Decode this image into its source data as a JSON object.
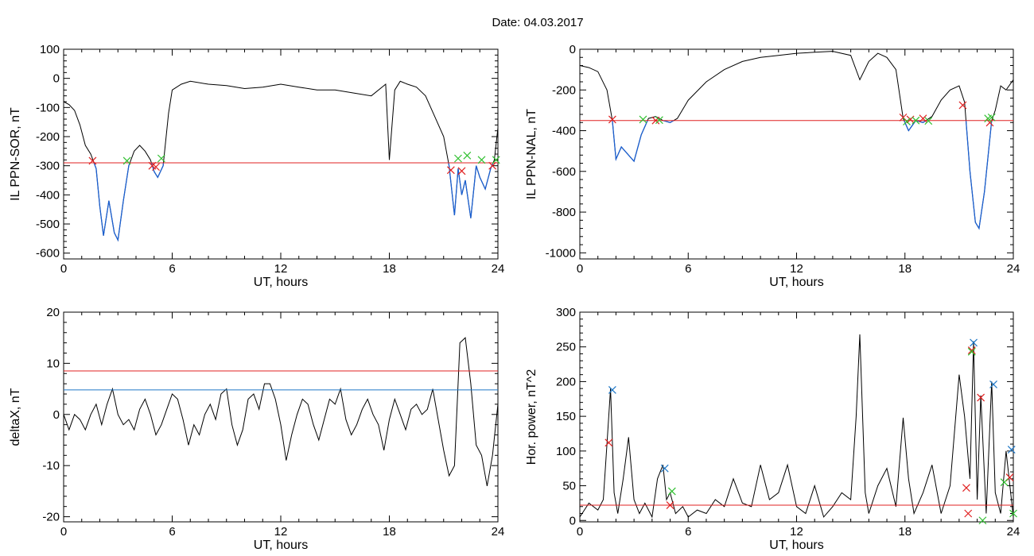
{
  "figure_title": "Date:  04.03.2017",
  "colors": {
    "line": "#000000",
    "threshold": "#e02020",
    "highlight": "#1a5fd0",
    "blue_line": "#1f78c8",
    "marker_red": "#e02020",
    "marker_green": "#30c030"
  },
  "chart_data": [
    {
      "id": "il-ppn-sor",
      "type": "line",
      "ylabel": "IL PPN-SOR, nT",
      "xlabel": "UT, hours",
      "xlim": [
        0,
        24
      ],
      "ylim": [
        -620,
        100
      ],
      "xticks": [
        0,
        6,
        12,
        18,
        24
      ],
      "yticks": [
        -600,
        -500,
        -400,
        -300,
        -200,
        -100,
        0,
        100
      ],
      "threshold": -290,
      "series": [
        {
          "x": [
            0,
            0.3,
            0.6,
            0.9,
            1.2,
            1.5,
            1.8,
            2.0,
            2.2,
            2.5,
            2.8,
            3.0,
            3.3,
            3.6,
            3.9,
            4.2,
            4.5,
            4.8,
            5.0,
            5.2,
            5.5,
            5.8,
            6.0,
            6.5,
            7,
            8,
            9,
            10,
            11,
            12,
            13,
            14,
            15,
            16,
            17,
            17.8,
            18.0,
            18.3,
            18.6,
            19,
            19.5,
            20,
            20.5,
            21,
            21.3,
            21.6,
            21.8,
            22.0,
            22.2,
            22.5,
            22.8,
            23,
            23.3,
            23.6,
            23.8,
            24
          ],
          "y": [
            -80,
            -90,
            -110,
            -160,
            -230,
            -260,
            -310,
            -440,
            -540,
            -420,
            -530,
            -555,
            -420,
            -300,
            -250,
            -230,
            -250,
            -280,
            -320,
            -340,
            -300,
            -120,
            -40,
            -20,
            -10,
            -20,
            -25,
            -35,
            -30,
            -20,
            -30,
            -40,
            -40,
            -50,
            -60,
            -20,
            -280,
            -40,
            -10,
            -20,
            -30,
            -60,
            -130,
            -200,
            -300,
            -470,
            -310,
            -400,
            -350,
            -480,
            -300,
            -340,
            -380,
            -310,
            -280,
            -170
          ]
        }
      ],
      "markers_red": [
        [
          1.6,
          -283
        ],
        [
          4.9,
          -300
        ],
        [
          5.1,
          -304
        ],
        [
          21.4,
          -315
        ],
        [
          22.0,
          -318
        ],
        [
          23.7,
          -300
        ]
      ],
      "markers_green": [
        [
          3.5,
          -283
        ],
        [
          5.4,
          -275
        ],
        [
          21.8,
          -275
        ],
        [
          22.3,
          -265
        ],
        [
          23.1,
          -280
        ],
        [
          23.9,
          -280
        ]
      ]
    },
    {
      "id": "il-ppn-nal",
      "type": "line",
      "ylabel": "IL PPN-NAL, nT",
      "xlabel": "UT, hours",
      "xlim": [
        0,
        24
      ],
      "ylim": [
        -1030,
        0
      ],
      "xticks": [
        0,
        6,
        12,
        18,
        24
      ],
      "yticks": [
        -1000,
        -800,
        -600,
        -400,
        -200,
        0
      ],
      "threshold": -350,
      "series": [
        {
          "x": [
            0,
            0.5,
            1.0,
            1.5,
            1.8,
            2.0,
            2.3,
            2.7,
            3.0,
            3.4,
            3.8,
            4.2,
            4.6,
            5.0,
            5.4,
            6,
            7,
            8,
            9,
            10,
            11,
            12,
            13,
            14,
            15,
            15.5,
            16,
            16.5,
            17,
            17.5,
            17.9,
            18.2,
            18.6,
            19.0,
            19.5,
            20,
            20.5,
            21,
            21.3,
            21.6,
            21.9,
            22.1,
            22.4,
            22.8,
            23.0,
            23.3,
            23.6,
            24
          ],
          "y": [
            -80,
            -90,
            -110,
            -200,
            -350,
            -540,
            -480,
            -520,
            -550,
            -420,
            -340,
            -330,
            -350,
            -360,
            -340,
            -250,
            -160,
            -100,
            -60,
            -40,
            -30,
            -20,
            -15,
            -10,
            -30,
            -150,
            -60,
            -20,
            -40,
            -100,
            -340,
            -400,
            -350,
            -360,
            -330,
            -250,
            -200,
            -180,
            -260,
            -600,
            -850,
            -880,
            -700,
            -350,
            -300,
            -180,
            -200,
            -150
          ]
        }
      ],
      "markers_red": [
        [
          1.8,
          -345
        ],
        [
          4.2,
          -350
        ],
        [
          17.9,
          -335
        ],
        [
          18.3,
          -345
        ],
        [
          19.0,
          -340
        ],
        [
          21.2,
          -275
        ],
        [
          22.7,
          -360
        ]
      ],
      "markers_green": [
        [
          3.5,
          -345
        ],
        [
          4.4,
          -348
        ],
        [
          18.1,
          -355
        ],
        [
          18.6,
          -350
        ],
        [
          19.3,
          -352
        ],
        [
          22.6,
          -340
        ],
        [
          22.8,
          -335
        ]
      ]
    },
    {
      "id": "delta-x",
      "type": "line",
      "ylabel": "deltaX, nT",
      "xlabel": "UT, hours",
      "xlim": [
        0,
        24
      ],
      "ylim": [
        -21,
        20
      ],
      "xticks": [
        0,
        6,
        12,
        18,
        24
      ],
      "yticks": [
        -20,
        -10,
        0,
        10,
        20
      ],
      "threshold_red": 8.5,
      "threshold_blue": 4.8,
      "series": [
        {
          "x": [
            0,
            0.3,
            0.6,
            0.9,
            1.2,
            1.5,
            1.8,
            2.1,
            2.4,
            2.7,
            3.0,
            3.3,
            3.6,
            3.9,
            4.2,
            4.5,
            4.8,
            5.1,
            5.4,
            5.7,
            6.0,
            6.3,
            6.6,
            6.9,
            7.2,
            7.5,
            7.8,
            8.1,
            8.4,
            8.7,
            9.0,
            9.3,
            9.6,
            9.9,
            10.2,
            10.5,
            10.8,
            11.1,
            11.4,
            11.7,
            12.0,
            12.3,
            12.6,
            12.9,
            13.2,
            13.5,
            13.8,
            14.1,
            14.4,
            14.7,
            15.0,
            15.3,
            15.6,
            15.9,
            16.2,
            16.5,
            16.8,
            17.1,
            17.4,
            17.7,
            18.0,
            18.3,
            18.6,
            18.9,
            19.2,
            19.5,
            19.8,
            20.1,
            20.4,
            20.7,
            21.0,
            21.3,
            21.6,
            21.9,
            22.2,
            22.5,
            22.8,
            23.1,
            23.4,
            23.7,
            24
          ],
          "y": [
            0,
            -3,
            0,
            -1,
            -3,
            0,
            2,
            -2,
            2,
            5,
            0,
            -2,
            -1,
            -3,
            1,
            3,
            0,
            -4,
            -2,
            1,
            4,
            3,
            -1,
            -6,
            -2,
            -4,
            0,
            2,
            -1,
            4,
            5,
            -2,
            -6,
            -3,
            3,
            4,
            1,
            6,
            6,
            3,
            -2,
            -9,
            -4,
            0,
            3,
            2,
            -2,
            -5,
            -1,
            3,
            2,
            5,
            -1,
            -4,
            -2,
            1,
            3,
            0,
            -2,
            -7,
            -1,
            3,
            0,
            -3,
            1,
            2,
            0,
            1,
            5,
            -1,
            -7,
            -12,
            -10,
            14,
            15,
            6,
            -6,
            -8,
            -14,
            -8,
            2
          ]
        }
      ]
    },
    {
      "id": "hor-power",
      "type": "line",
      "ylabel": "Hor. power, nT^2",
      "xlabel": "UT, hours",
      "xlim": [
        0,
        24
      ],
      "ylim": [
        -2,
        300
      ],
      "xticks": [
        0,
        6,
        12,
        18,
        24
      ],
      "yticks": [
        0,
        50,
        100,
        150,
        200,
        250,
        300
      ],
      "threshold": 22,
      "series": [
        {
          "x": [
            0,
            0.5,
            1.0,
            1.3,
            1.5,
            1.7,
            1.9,
            2.1,
            2.4,
            2.7,
            3.0,
            3.3,
            3.6,
            4.0,
            4.3,
            4.6,
            4.8,
            5.0,
            5.3,
            5.7,
            6.0,
            6.5,
            7.0,
            7.5,
            8.0,
            8.5,
            9.0,
            9.5,
            10.0,
            10.5,
            11.0,
            11.5,
            12.0,
            12.5,
            13.0,
            13.5,
            14.0,
            14.5,
            15.0,
            15.3,
            15.5,
            15.8,
            16.0,
            16.5,
            17.0,
            17.5,
            17.9,
            18.2,
            18.5,
            19.0,
            19.5,
            20.0,
            20.5,
            21.0,
            21.3,
            21.6,
            21.8,
            22.0,
            22.2,
            22.5,
            22.8,
            23.0,
            23.3,
            23.6,
            24
          ],
          "y": [
            5,
            25,
            15,
            30,
            110,
            190,
            40,
            10,
            60,
            120,
            30,
            10,
            25,
            5,
            60,
            80,
            30,
            40,
            10,
            20,
            5,
            15,
            10,
            30,
            20,
            60,
            25,
            20,
            80,
            30,
            40,
            80,
            20,
            10,
            50,
            5,
            20,
            40,
            30,
            150,
            268,
            40,
            10,
            50,
            75,
            20,
            148,
            60,
            10,
            40,
            80,
            10,
            50,
            210,
            150,
            60,
            258,
            30,
            180,
            10,
            200,
            40,
            10,
            100,
            5
          ]
        }
      ],
      "markers_red": [
        [
          1.6,
          112
        ],
        [
          5.0,
          22
        ],
        [
          21.4,
          47
        ],
        [
          21.7,
          245
        ],
        [
          21.5,
          10
        ],
        [
          22.2,
          177
        ],
        [
          23.8,
          62
        ]
      ],
      "markers_blue": [
        [
          1.8,
          188
        ],
        [
          4.7,
          75
        ],
        [
          21.8,
          256
        ],
        [
          22.9,
          196
        ],
        [
          23.9,
          102
        ]
      ],
      "markers_green": [
        [
          5.1,
          42
        ],
        [
          21.7,
          243
        ],
        [
          22.3,
          0
        ],
        [
          23.5,
          55
        ],
        [
          24.0,
          10
        ]
      ]
    }
  ]
}
